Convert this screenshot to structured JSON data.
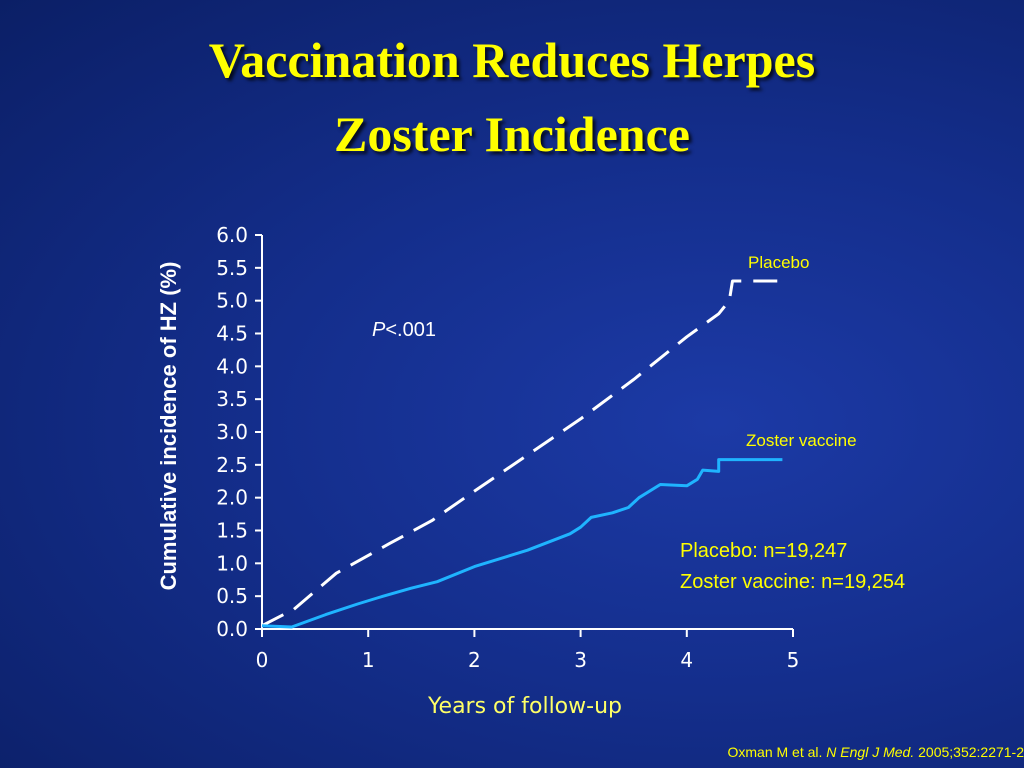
{
  "slide": {
    "title_line1": "Vaccination Reduces Herpes",
    "title_line2": "Zoster Incidence",
    "p_value_italic": "P",
    "p_value_rest": "<.001",
    "sample_sizes": [
      "Placebo: n=19,247",
      "Zoster vaccine: n=19,254"
    ],
    "citation": {
      "authors": "Oxman M et al. ",
      "journal": "N Engl J Med.",
      "details": " 2005;352:2271-2"
    }
  },
  "colors": {
    "background": "#142e8c",
    "title": "#ffff00",
    "axis": "#ffffff",
    "placebo_line": "#ffffff",
    "vaccine_line": "#1fb4ff",
    "x_axis_title": "#ffff66"
  },
  "chart_data": {
    "type": "line",
    "xlabel": "Years of follow-up",
    "ylabel": "Cumulative incidence of HZ (%)",
    "xlim": [
      0,
      5
    ],
    "ylim": [
      0,
      6
    ],
    "x_ticks": [
      "0",
      "1",
      "2",
      "3",
      "4",
      "5"
    ],
    "y_ticks": [
      "0.0",
      "0.5",
      "1.0",
      "1.5",
      "2.0",
      "2.5",
      "3.0",
      "3.5",
      "4.0",
      "4.5",
      "5.0",
      "5.5",
      "6.0"
    ],
    "grid": false,
    "series": [
      {
        "name": "Placebo",
        "style": "dashed",
        "points": [
          [
            0,
            0.05
          ],
          [
            0.3,
            0.3
          ],
          [
            0.7,
            0.85
          ],
          [
            1.2,
            1.3
          ],
          [
            1.6,
            1.65
          ],
          [
            2.0,
            2.1
          ],
          [
            2.5,
            2.65
          ],
          [
            3.0,
            3.2
          ],
          [
            3.5,
            3.8
          ],
          [
            4.0,
            4.45
          ],
          [
            4.3,
            4.8
          ],
          [
            4.4,
            5.0
          ],
          [
            4.43,
            5.3
          ],
          [
            4.9,
            5.3
          ]
        ]
      },
      {
        "name": "Zoster vaccine",
        "style": "solid",
        "points": [
          [
            0,
            0.05
          ],
          [
            0.28,
            0.03
          ],
          [
            0.6,
            0.22
          ],
          [
            0.9,
            0.38
          ],
          [
            1.1,
            0.48
          ],
          [
            1.4,
            0.62
          ],
          [
            1.65,
            0.72
          ],
          [
            2.0,
            0.95
          ],
          [
            2.5,
            1.2
          ],
          [
            2.9,
            1.45
          ],
          [
            3.0,
            1.55
          ],
          [
            3.1,
            1.7
          ],
          [
            3.3,
            1.77
          ],
          [
            3.45,
            1.85
          ],
          [
            3.55,
            2.0
          ],
          [
            3.75,
            2.2
          ],
          [
            4.0,
            2.18
          ],
          [
            4.1,
            2.28
          ],
          [
            4.15,
            2.42
          ],
          [
            4.3,
            2.4
          ],
          [
            4.3,
            2.58
          ],
          [
            4.9,
            2.58
          ]
        ]
      }
    ]
  }
}
